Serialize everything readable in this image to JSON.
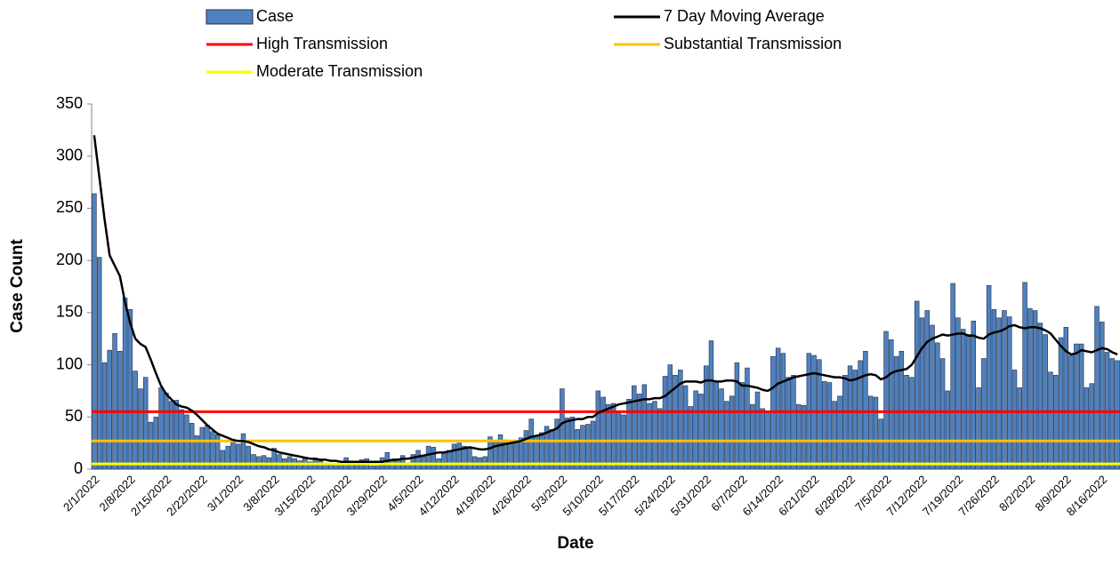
{
  "chart_data": {
    "type": "bar",
    "x_label": "Date",
    "y_label": "Case Count",
    "ylim": [
      0,
      350
    ],
    "yticks": [
      0,
      50,
      100,
      150,
      200,
      250,
      300,
      350
    ],
    "categories": [
      "2/1/2022",
      null,
      null,
      null,
      null,
      null,
      null,
      "2/8/2022",
      null,
      null,
      null,
      null,
      null,
      null,
      "2/15/2022",
      null,
      null,
      null,
      null,
      null,
      null,
      "2/22/2022",
      null,
      null,
      null,
      null,
      null,
      null,
      "3/1/2022",
      null,
      null,
      null,
      null,
      null,
      null,
      "3/8/2022",
      null,
      null,
      null,
      null,
      null,
      null,
      "3/15/2022",
      null,
      null,
      null,
      null,
      null,
      null,
      "3/22/2022",
      null,
      null,
      null,
      null,
      null,
      null,
      "3/29/2022",
      null,
      null,
      null,
      null,
      null,
      null,
      "4/5/2022",
      null,
      null,
      null,
      null,
      null,
      null,
      "4/12/2022",
      null,
      null,
      null,
      null,
      null,
      null,
      "4/19/2022",
      null,
      null,
      null,
      null,
      null,
      null,
      "4/26/2022",
      null,
      null,
      null,
      null,
      null,
      null,
      "5/3/2022",
      null,
      null,
      null,
      null,
      null,
      null,
      "5/10/2022",
      null,
      null,
      null,
      null,
      null,
      null,
      "5/17/2022",
      null,
      null,
      null,
      null,
      null,
      null,
      "5/24/2022",
      null,
      null,
      null,
      null,
      null,
      null,
      "5/31/2022",
      null,
      null,
      null,
      null,
      null,
      null,
      "6/7/2022",
      null,
      null,
      null,
      null,
      null,
      null,
      "6/14/2022",
      null,
      null,
      null,
      null,
      null,
      null,
      "6/21/2022",
      null,
      null,
      null,
      null,
      null,
      null,
      "6/28/2022",
      null,
      null,
      null,
      null,
      null,
      null,
      "7/5/2022",
      null,
      null,
      null,
      null,
      null,
      null,
      "7/12/2022",
      null,
      null,
      null,
      null,
      null,
      null,
      "7/19/2022",
      null,
      null,
      null,
      null,
      null,
      null,
      "7/26/2022",
      null,
      null,
      null,
      null,
      null,
      null,
      "8/2/2022",
      null,
      null,
      null,
      null,
      null,
      null,
      "8/9/2022",
      null,
      null,
      null,
      null,
      null,
      null,
      "8/16/2022",
      null,
      null,
      null
    ],
    "series": [
      {
        "name": "Case",
        "type": "bar",
        "color": "#4f81bd",
        "values": [
          264,
          203,
          102,
          114,
          130,
          113,
          164,
          153,
          94,
          77,
          88,
          45,
          50,
          78,
          73,
          65,
          66,
          57,
          52,
          44,
          32,
          40,
          42,
          36,
          33,
          18,
          22,
          27,
          24,
          34,
          22,
          14,
          12,
          13,
          11,
          20,
          14,
          10,
          12,
          10,
          8,
          10,
          7,
          9,
          8,
          6,
          4,
          5,
          7,
          11,
          6,
          4,
          9,
          10,
          3,
          3,
          11,
          16,
          8,
          10,
          13,
          6,
          14,
          18,
          12,
          22,
          21,
          10,
          15,
          18,
          24,
          25,
          22,
          20,
          12,
          11,
          12,
          31,
          27,
          33,
          28,
          25,
          26,
          30,
          37,
          48,
          32,
          35,
          41,
          38,
          48,
          77,
          49,
          50,
          38,
          42,
          43,
          46,
          75,
          69,
          62,
          63,
          55,
          52,
          67,
          80,
          72,
          81,
          63,
          65,
          58,
          89,
          100,
          90,
          95,
          80,
          60,
          75,
          72,
          99,
          123,
          84,
          77,
          65,
          70,
          102,
          83,
          97,
          62,
          74,
          58,
          56,
          108,
          116,
          111,
          88,
          90,
          62,
          61,
          111,
          109,
          105,
          84,
          83,
          65,
          70,
          90,
          99,
          95,
          104,
          113,
          70,
          69,
          48,
          132,
          124,
          108,
          113,
          90,
          88,
          161,
          145,
          152,
          138,
          121,
          106,
          75,
          178,
          145,
          134,
          129,
          142,
          78,
          106,
          176,
          153,
          145,
          152,
          146,
          95,
          78,
          179,
          154,
          152,
          140,
          129,
          93,
          90,
          126,
          136,
          109,
          120,
          120,
          78,
          82,
          156,
          141,
          112,
          106,
          104
        ]
      },
      {
        "name": "7 Day Moving Average",
        "type": "line",
        "color": "#000000",
        "values": [
          320,
          280,
          240,
          205,
          195,
          185,
          160,
          140,
          125,
          120,
          117,
          105,
          92,
          80,
          72,
          67,
          62,
          60,
          59,
          56,
          52,
          47,
          42,
          38,
          34,
          32,
          30,
          28,
          27,
          27,
          26,
          24,
          22,
          21,
          19,
          18,
          16,
          15,
          14,
          13,
          12,
          11,
          10,
          10,
          9,
          9,
          8,
          8,
          7,
          7,
          7,
          7,
          7,
          7,
          7,
          7,
          7,
          8,
          9,
          9,
          10,
          10,
          11,
          12,
          13,
          14,
          15,
          16,
          16,
          17,
          18,
          19,
          20,
          21,
          20,
          19,
          19,
          20,
          22,
          23,
          24,
          25,
          26,
          27,
          29,
          31,
          32,
          33,
          35,
          37,
          39,
          44,
          46,
          47,
          48,
          48,
          50,
          50,
          54,
          56,
          58,
          60,
          62,
          63,
          64,
          65,
          66,
          67,
          67,
          68,
          68,
          70,
          74,
          78,
          82,
          84,
          84,
          84,
          83,
          85,
          85,
          84,
          84,
          85,
          85,
          84,
          80,
          80,
          79,
          78,
          76,
          75,
          78,
          82,
          84,
          86,
          88,
          89,
          90,
          91,
          92,
          91,
          90,
          89,
          88,
          88,
          87,
          85,
          86,
          88,
          90,
          91,
          90,
          86,
          88,
          92,
          94,
          95,
          96,
          100,
          108,
          116,
          122,
          125,
          127,
          129,
          128,
          129,
          130,
          130,
          128,
          128,
          126,
          125,
          129,
          131,
          132,
          134,
          137,
          138,
          136,
          135,
          136,
          136,
          135,
          133,
          130,
          124,
          118,
          113,
          110,
          111,
          114,
          113,
          112,
          114,
          116,
          115,
          112,
          110
        ]
      }
    ],
    "thresholds": [
      {
        "name": "High Transmission",
        "color": "#ff0000",
        "value": 55
      },
      {
        "name": "Substantial Transmission",
        "color": "#ffc000",
        "value": 27
      },
      {
        "name": "Moderate Transmission",
        "color": "#ffff00",
        "value": 5
      }
    ]
  }
}
